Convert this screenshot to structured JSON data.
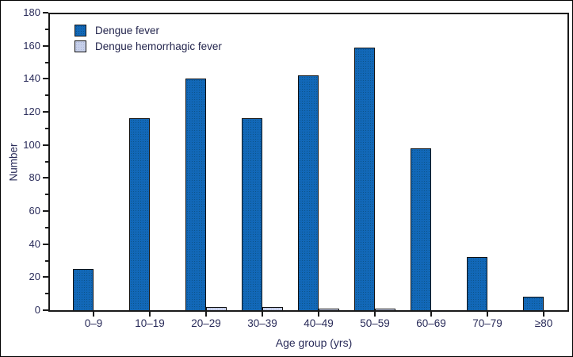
{
  "chart_data": {
    "type": "bar",
    "title": "",
    "categories": [
      "0–9",
      "10–19",
      "20–29",
      "30–39",
      "40–49",
      "50–59",
      "60–69",
      "70–79",
      "≥80"
    ],
    "series": [
      {
        "name": "Dengue fever",
        "color": "#1268b8",
        "values": [
          25,
          116,
          140,
          116,
          142,
          159,
          98,
          32,
          8
        ]
      },
      {
        "name": "Dengue hemorrhagic fever",
        "color": "#c7d0ea",
        "values": [
          0,
          0,
          2,
          2,
          1,
          1,
          0,
          0,
          0
        ]
      }
    ],
    "xlabel": "Age group (yrs)",
    "ylabel": "Number",
    "ylim": [
      0,
      180
    ],
    "y_major_step": 20,
    "y_minor_step": 10,
    "grid": false,
    "legend_position": "top-left-inside",
    "axis_color": "#1a1a1a",
    "text_color": "#2a2c5a"
  }
}
